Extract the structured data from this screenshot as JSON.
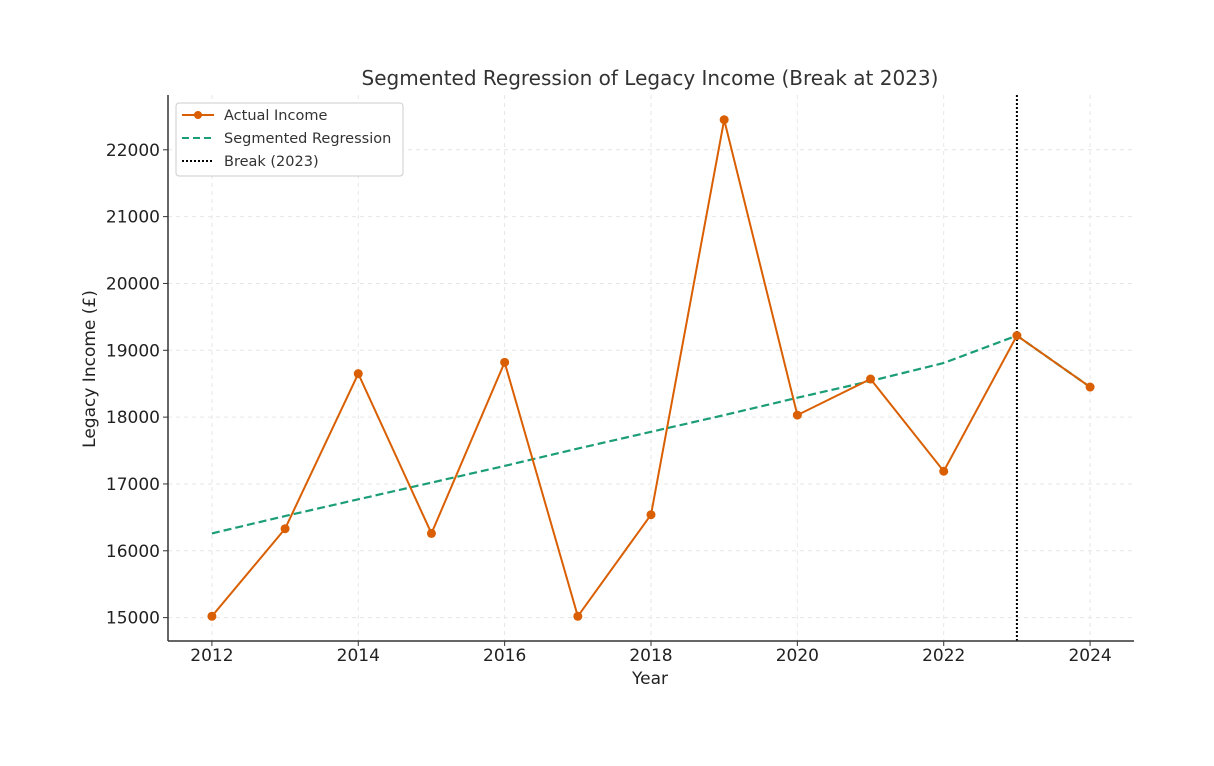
{
  "chart_data": {
    "type": "line",
    "title": "Segmented Regression of Legacy Income (Break at 2023)",
    "xlabel": "Year",
    "ylabel": "Legacy Income (£)",
    "xlim": [
      2011.4,
      2024.6
    ],
    "ylim": [
      14650,
      22820
    ],
    "x_ticks": [
      2012,
      2014,
      2016,
      2018,
      2020,
      2022,
      2024
    ],
    "y_ticks": [
      15000,
      16000,
      17000,
      18000,
      19000,
      20000,
      21000,
      22000
    ],
    "grid": true,
    "legend_position": "top-left",
    "break_x": 2023,
    "series": [
      {
        "name": "Actual Income",
        "style": "solid-with-markers",
        "color": "#d95f02",
        "x": [
          2012,
          2013,
          2014,
          2015,
          2016,
          2017,
          2018,
          2019,
          2020,
          2021,
          2022,
          2023,
          2024
        ],
        "values": [
          15020,
          16330,
          18650,
          16260,
          18820,
          15020,
          16540,
          22450,
          18030,
          18570,
          17190,
          19220,
          18450
        ]
      },
      {
        "name": "Segmented Regression",
        "style": "dashed",
        "color": "#1b9e77",
        "x": [
          2012,
          2013,
          2014,
          2015,
          2016,
          2017,
          2018,
          2019,
          2020,
          2021,
          2022,
          2023,
          2024
        ],
        "values": [
          16260,
          16520,
          16770,
          17020,
          17270,
          17530,
          17780,
          18030,
          18290,
          18540,
          18810,
          19220,
          18450
        ]
      }
    ],
    "break_line": {
      "name": "Break (2023)",
      "style": "dotted",
      "color": "#000000"
    }
  }
}
